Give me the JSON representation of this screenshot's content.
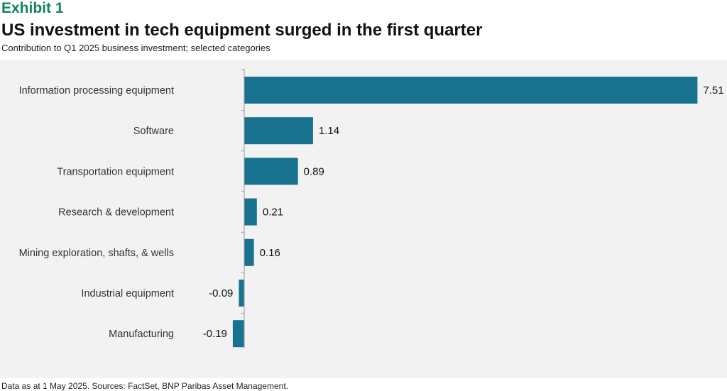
{
  "header": {
    "exhibit": "Exhibit 1",
    "title": "US investment in tech equipment surged in the first quarter",
    "subtitle": "Contribution to Q1 2025 business investment; selected categories"
  },
  "footer": {
    "note": "Data as at 1 May 2025.  Sources: FactSet, BNP Paribas Asset Management."
  },
  "colors": {
    "bar": "#17718f",
    "exhibit": "#12855a",
    "panel_background": "#f2f2f2"
  },
  "chart_data": {
    "type": "bar",
    "orientation": "horizontal",
    "title": "US investment in tech equipment surged in the first quarter",
    "subtitle": "Contribution to Q1 2025 business investment; selected categories",
    "xlabel": "",
    "ylabel": "",
    "categories": [
      "Information processing equipment",
      "Software",
      "Transportation equipment",
      "Research & development",
      "Mining exploration, shafts, & wells",
      "Industrial equipment",
      "Manufacturing"
    ],
    "values": [
      7.51,
      1.14,
      0.89,
      0.21,
      0.16,
      -0.09,
      -0.19
    ],
    "value_labels": [
      "7.51",
      "1.14",
      "0.89",
      "0.21",
      "0.16",
      "-0.09",
      "-0.19"
    ],
    "xlim": [
      -0.19,
      7.51
    ],
    "grid": false,
    "legend": "none",
    "data_labels": true
  }
}
